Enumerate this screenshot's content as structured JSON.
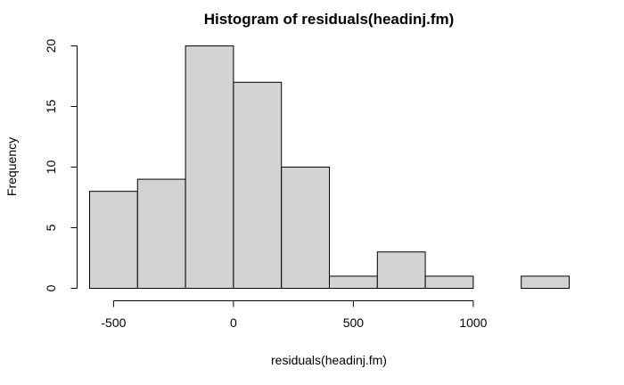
{
  "chart_data": {
    "type": "bar",
    "title": "Histogram of residuals(headinj.fm)",
    "xlabel": "residuals(headinj.fm)",
    "ylabel": "Frequency",
    "bins": [
      {
        "start": -600,
        "end": -400,
        "count": 8
      },
      {
        "start": -400,
        "end": -200,
        "count": 9
      },
      {
        "start": -200,
        "end": 0,
        "count": 20
      },
      {
        "start": 0,
        "end": 200,
        "count": 17
      },
      {
        "start": 200,
        "end": 400,
        "count": 10
      },
      {
        "start": 400,
        "end": 600,
        "count": 1
      },
      {
        "start": 600,
        "end": 800,
        "count": 3
      },
      {
        "start": 800,
        "end": 1000,
        "count": 1
      },
      {
        "start": 1000,
        "end": 1200,
        "count": 0
      },
      {
        "start": 1200,
        "end": 1400,
        "count": 1
      }
    ],
    "x_ticks": [
      "-500",
      "0",
      "500",
      "1000"
    ],
    "x_tick_values": [
      -500,
      0,
      500,
      1000
    ],
    "y_ticks": [
      "0",
      "5",
      "10",
      "15",
      "20"
    ],
    "y_tick_values": [
      0,
      5,
      10,
      15,
      20
    ],
    "xlim": [
      -600,
      1400
    ],
    "ylim": [
      0,
      20
    ],
    "grid": false,
    "bar_color": "#d3d3d3",
    "border_color": "#000000"
  }
}
